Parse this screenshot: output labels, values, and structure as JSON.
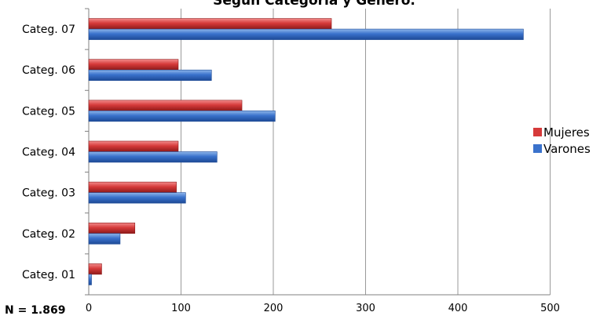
{
  "title": "Según Categoría y Género.",
  "note": "N = 1.869",
  "colors": {
    "mujeres_light": "#f28b8b",
    "mujeres": "#d63a3a",
    "mujeres_dark": "#8e1a1a",
    "varones_light": "#8fb6ea",
    "varones": "#3a72cc",
    "varones_dark": "#1d4a96",
    "grid": "#9a9a9a",
    "axis": "#808080"
  },
  "chart_data": {
    "type": "bar",
    "orientation": "horizontal",
    "categories": [
      "Categ. 01",
      "Categ. 02",
      "Categ. 03",
      "Categ. 04",
      "Categ. 05",
      "Categ. 06",
      "Categ. 07"
    ],
    "series": [
      {
        "name": "Mujeres",
        "values": [
          14,
          50,
          95,
          97,
          166,
          97,
          263
        ]
      },
      {
        "name": "Varones",
        "values": [
          3,
          34,
          105,
          139,
          202,
          133,
          471
        ]
      }
    ],
    "xlim": [
      0,
      500
    ],
    "xticks": [
      0,
      100,
      200,
      300,
      400,
      500
    ],
    "grid": true,
    "legend": "right"
  }
}
